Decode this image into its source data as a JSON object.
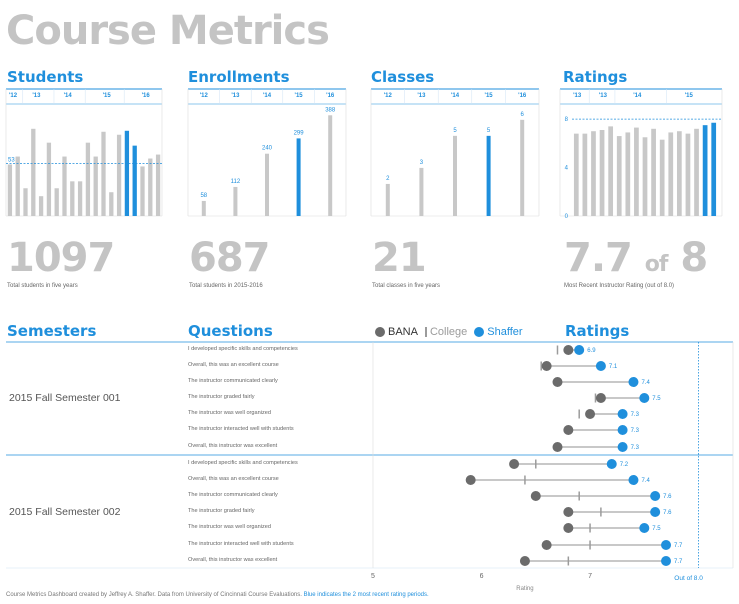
{
  "title": "Course Metrics",
  "colors": {
    "accent": "#1f8fdc",
    "gray_bar": "#c8c8c8",
    "dark_dot": "#6b6b6b",
    "college_mark": "#9b9b9b",
    "title_gray": "#c4c4c4"
  },
  "panels": {
    "students": {
      "title": "Students",
      "big_value": "1097",
      "caption": "Total students in five years"
    },
    "enrollments": {
      "title": "Enrollments",
      "big_value": "687",
      "caption": "Total students in 2015-2016"
    },
    "classes": {
      "title": "Classes",
      "big_value": "21",
      "caption": "Total classes in five years"
    },
    "ratings": {
      "title": "Ratings",
      "big_value": "7.7",
      "of_text": "of",
      "big_max": "8",
      "caption": "Most Recent Instructor Rating (out of 8.0)"
    }
  },
  "lower": {
    "semesters_title": "Semesters",
    "questions_title": "Questions",
    "ratings_title": "Ratings",
    "legend": {
      "bana": "BANA",
      "college": "College",
      "shaffer": "Shaffer"
    },
    "semesters": [
      "2015 Fall Semester 001",
      "2015 Fall Semester 002"
    ]
  },
  "footer": {
    "text": "Course Metrics Dashboard created by Jeffrey A. Shaffer. Data from University of Cincinnati Course Evaluations.",
    "blue_text": "Blue indicates the 2 most recent rating periods."
  },
  "chart_data": [
    {
      "type": "bar",
      "name": "students",
      "x_ticks": [
        "'12",
        "'13",
        "'14",
        "'15",
        "'16"
      ],
      "values": [
        52,
        60,
        28,
        88,
        20,
        74,
        28,
        60,
        35,
        35,
        74,
        60,
        85,
        24,
        82,
        86,
        71,
        50,
        58,
        62
      ],
      "highlight_indices": [
        15,
        16
      ],
      "reference_value": 53,
      "reference_label": "53",
      "ylim": [
        0,
        110
      ]
    },
    {
      "type": "bar",
      "name": "enrollments",
      "categories": [
        "'12",
        "'13",
        "'14",
        "'15",
        "'16"
      ],
      "values": [
        58,
        112,
        240,
        299,
        388
      ],
      "labels": [
        "58",
        "112",
        "240",
        "299",
        "388"
      ],
      "highlight_indices": [
        3
      ],
      "ylim": [
        0,
        420
      ]
    },
    {
      "type": "bar",
      "name": "classes",
      "categories": [
        "'12",
        "'13",
        "'14",
        "'15",
        "'16"
      ],
      "values": [
        2,
        3,
        5,
        5,
        6
      ],
      "labels": [
        "2",
        "3",
        "5",
        "5",
        "6"
      ],
      "highlight_indices": [
        3
      ],
      "ylim": [
        0,
        6.8
      ]
    },
    {
      "type": "bar",
      "name": "ratings",
      "x_ticks": [
        "'13",
        "'13",
        "'14",
        "'15"
      ],
      "y_ticks": [
        "0",
        "4",
        "8"
      ],
      "values": [
        6.8,
        6.8,
        7.0,
        7.1,
        7.4,
        6.6,
        6.9,
        7.3,
        6.5,
        7.2,
        6.3,
        6.9,
        7.0,
        6.8,
        7.2,
        7.5,
        7.7
      ],
      "highlight_indices": [
        15,
        16
      ],
      "reference_value": 8,
      "ylim": [
        0,
        9
      ]
    },
    {
      "type": "scatter",
      "name": "question_ratings",
      "xlabel": "Rating",
      "x_ticks": [
        "5",
        "6",
        "7"
      ],
      "xlim": [
        5,
        8.05
      ],
      "reference_label": "Out of 8.0",
      "reference_value": 8.0,
      "rows": [
        {
          "semester": 0,
          "question": "I developed specific skills and competencies",
          "bana": 6.8,
          "college": 6.7,
          "shaffer": 6.9,
          "label": "6.9"
        },
        {
          "semester": 0,
          "question": "Overall, this was an excellent course",
          "bana": 6.6,
          "college": 6.55,
          "shaffer": 7.1,
          "label": "7.1"
        },
        {
          "semester": 0,
          "question": "The instructor communicated clearly",
          "bana": 6.7,
          "college": 6.7,
          "shaffer": 7.4,
          "label": "7.4"
        },
        {
          "semester": 0,
          "question": "The instructor graded fairly",
          "bana": 7.1,
          "college": 7.05,
          "shaffer": 7.5,
          "label": "7.5"
        },
        {
          "semester": 0,
          "question": "The instructor was well organized",
          "bana": 7.0,
          "college": 6.9,
          "shaffer": 7.3,
          "label": "7.3"
        },
        {
          "semester": 0,
          "question": "The instructor interacted well with students",
          "bana": 6.8,
          "college": 6.8,
          "shaffer": 7.3,
          "label": "7.3"
        },
        {
          "semester": 0,
          "question": "Overall, this instructor was excellent",
          "bana": 6.7,
          "college": 6.7,
          "shaffer": 7.3,
          "label": "7.3"
        },
        {
          "semester": 1,
          "question": "I developed specific skills and competencies",
          "bana": 6.3,
          "college": 6.5,
          "shaffer": 7.2,
          "label": "7.2"
        },
        {
          "semester": 1,
          "question": "Overall, this was an excellent course",
          "bana": 5.9,
          "college": 6.4,
          "shaffer": 7.4,
          "label": "7.4"
        },
        {
          "semester": 1,
          "question": "The instructor communicated clearly",
          "bana": 6.5,
          "college": 6.9,
          "shaffer": 7.6,
          "label": "7.6"
        },
        {
          "semester": 1,
          "question": "The instructor graded fairly",
          "bana": 6.8,
          "college": 7.1,
          "shaffer": 7.6,
          "label": "7.6"
        },
        {
          "semester": 1,
          "question": "The instructor was well organized",
          "bana": 6.8,
          "college": 7.0,
          "shaffer": 7.5,
          "label": "7.5"
        },
        {
          "semester": 1,
          "question": "The instructor interacted well with students",
          "bana": 6.6,
          "college": 7.0,
          "shaffer": 7.7,
          "label": "7.7"
        },
        {
          "semester": 1,
          "question": "Overall, this instructor was excellent",
          "bana": 6.4,
          "college": 6.8,
          "shaffer": 7.7,
          "label": "7.7"
        }
      ]
    }
  ]
}
